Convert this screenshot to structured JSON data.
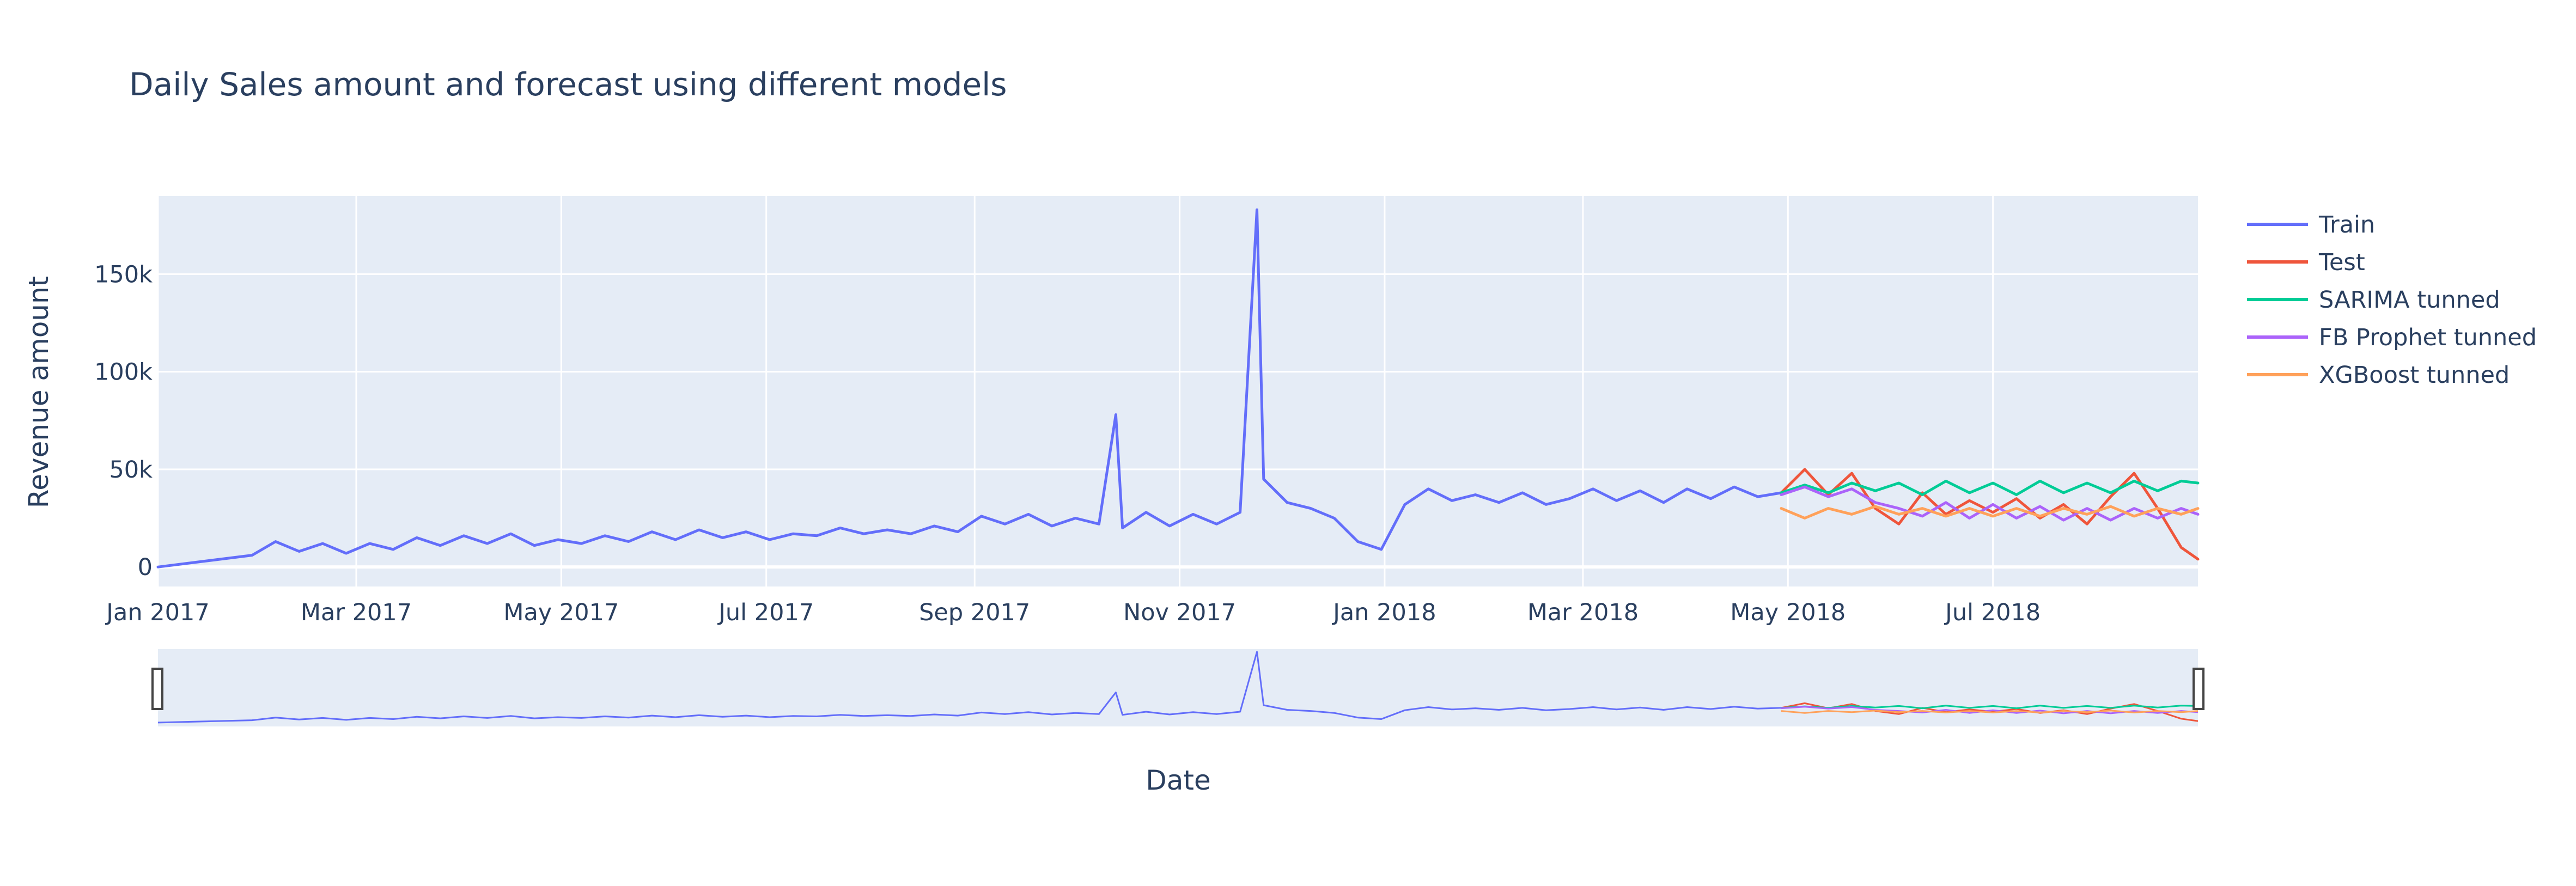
{
  "chart_data": {
    "type": "line",
    "title": "Daily Sales amount and forecast using different models",
    "xlabel": "Date",
    "ylabel": "Revenue amount",
    "xlim": [
      "2017-01-01",
      "2018-08-31"
    ],
    "ylim": [
      -10000,
      190000
    ],
    "x_ticks": [
      "Jan 2017",
      "Mar 2017",
      "May 2017",
      "Jul 2017",
      "Sep 2017",
      "Nov 2017",
      "Jan 2018",
      "Mar 2018",
      "May 2018",
      "Jul 2018"
    ],
    "y_ticks": [
      {
        "value": 0,
        "label": "0"
      },
      {
        "value": 50000,
        "label": "50k"
      },
      {
        "value": 100000,
        "label": "100k"
      },
      {
        "value": 150000,
        "label": "150k"
      }
    ],
    "grid": true,
    "legend_position": "top-right",
    "range_slider": true,
    "series": [
      {
        "name": "Train",
        "color": "#636efa",
        "points": [
          [
            "2017-01-01",
            0
          ],
          [
            "2017-01-15",
            3000
          ],
          [
            "2017-01-29",
            6000
          ],
          [
            "2017-02-05",
            13000
          ],
          [
            "2017-02-12",
            8000
          ],
          [
            "2017-02-19",
            12000
          ],
          [
            "2017-02-26",
            7000
          ],
          [
            "2017-03-05",
            12000
          ],
          [
            "2017-03-12",
            9000
          ],
          [
            "2017-03-19",
            15000
          ],
          [
            "2017-03-26",
            11000
          ],
          [
            "2017-04-02",
            16000
          ],
          [
            "2017-04-09",
            12000
          ],
          [
            "2017-04-16",
            17000
          ],
          [
            "2017-04-23",
            11000
          ],
          [
            "2017-04-30",
            14000
          ],
          [
            "2017-05-07",
            12000
          ],
          [
            "2017-05-14",
            16000
          ],
          [
            "2017-05-21",
            13000
          ],
          [
            "2017-05-28",
            18000
          ],
          [
            "2017-06-04",
            14000
          ],
          [
            "2017-06-11",
            19000
          ],
          [
            "2017-06-18",
            15000
          ],
          [
            "2017-06-25",
            18000
          ],
          [
            "2017-07-02",
            14000
          ],
          [
            "2017-07-09",
            17000
          ],
          [
            "2017-07-16",
            16000
          ],
          [
            "2017-07-23",
            20000
          ],
          [
            "2017-07-30",
            17000
          ],
          [
            "2017-08-06",
            19000
          ],
          [
            "2017-08-13",
            17000
          ],
          [
            "2017-08-20",
            21000
          ],
          [
            "2017-08-27",
            18000
          ],
          [
            "2017-09-03",
            26000
          ],
          [
            "2017-09-10",
            22000
          ],
          [
            "2017-09-17",
            27000
          ],
          [
            "2017-09-24",
            21000
          ],
          [
            "2017-10-01",
            25000
          ],
          [
            "2017-10-08",
            22000
          ],
          [
            "2017-10-13",
            78000
          ],
          [
            "2017-10-15",
            20000
          ],
          [
            "2017-10-22",
            28000
          ],
          [
            "2017-10-29",
            21000
          ],
          [
            "2017-11-05",
            27000
          ],
          [
            "2017-11-12",
            22000
          ],
          [
            "2017-11-19",
            28000
          ],
          [
            "2017-11-24",
            183000
          ],
          [
            "2017-11-26",
            45000
          ],
          [
            "2017-12-03",
            33000
          ],
          [
            "2017-12-10",
            30000
          ],
          [
            "2017-12-17",
            25000
          ],
          [
            "2017-12-24",
            13000
          ],
          [
            "2017-12-31",
            9000
          ],
          [
            "2018-01-07",
            32000
          ],
          [
            "2018-01-14",
            40000
          ],
          [
            "2018-01-21",
            34000
          ],
          [
            "2018-01-28",
            37000
          ],
          [
            "2018-02-04",
            33000
          ],
          [
            "2018-02-11",
            38000
          ],
          [
            "2018-02-18",
            32000
          ],
          [
            "2018-02-25",
            35000
          ],
          [
            "2018-03-04",
            40000
          ],
          [
            "2018-03-11",
            34000
          ],
          [
            "2018-03-18",
            39000
          ],
          [
            "2018-03-25",
            33000
          ],
          [
            "2018-04-01",
            40000
          ],
          [
            "2018-04-08",
            35000
          ],
          [
            "2018-04-15",
            41000
          ],
          [
            "2018-04-22",
            36000
          ],
          [
            "2018-04-29",
            38000
          ]
        ]
      },
      {
        "name": "Test",
        "color": "#ef553b",
        "points": [
          [
            "2018-04-29",
            38000
          ],
          [
            "2018-05-06",
            50000
          ],
          [
            "2018-05-13",
            37000
          ],
          [
            "2018-05-20",
            48000
          ],
          [
            "2018-05-27",
            30000
          ],
          [
            "2018-06-03",
            22000
          ],
          [
            "2018-06-10",
            38000
          ],
          [
            "2018-06-17",
            27000
          ],
          [
            "2018-06-24",
            34000
          ],
          [
            "2018-07-01",
            28000
          ],
          [
            "2018-07-08",
            35000
          ],
          [
            "2018-07-15",
            25000
          ],
          [
            "2018-07-22",
            32000
          ],
          [
            "2018-07-29",
            22000
          ],
          [
            "2018-08-05",
            36000
          ],
          [
            "2018-08-12",
            48000
          ],
          [
            "2018-08-19",
            30000
          ],
          [
            "2018-08-26",
            10000
          ],
          [
            "2018-08-31",
            4000
          ]
        ]
      },
      {
        "name": "SARIMA tunned",
        "color": "#00cc96",
        "points": [
          [
            "2018-04-29",
            38000
          ],
          [
            "2018-05-06",
            42000
          ],
          [
            "2018-05-13",
            38000
          ],
          [
            "2018-05-20",
            43000
          ],
          [
            "2018-05-27",
            39000
          ],
          [
            "2018-06-03",
            43000
          ],
          [
            "2018-06-10",
            37000
          ],
          [
            "2018-06-17",
            44000
          ],
          [
            "2018-06-24",
            38000
          ],
          [
            "2018-07-01",
            43000
          ],
          [
            "2018-07-08",
            37000
          ],
          [
            "2018-07-15",
            44000
          ],
          [
            "2018-07-22",
            38000
          ],
          [
            "2018-07-29",
            43000
          ],
          [
            "2018-08-05",
            38000
          ],
          [
            "2018-08-12",
            44000
          ],
          [
            "2018-08-19",
            39000
          ],
          [
            "2018-08-26",
            44000
          ],
          [
            "2018-08-31",
            43000
          ]
        ]
      },
      {
        "name": "FB Prophet tunned",
        "color": "#ab63fa",
        "points": [
          [
            "2018-04-29",
            37000
          ],
          [
            "2018-05-06",
            41000
          ],
          [
            "2018-05-13",
            36000
          ],
          [
            "2018-05-20",
            40000
          ],
          [
            "2018-05-27",
            33000
          ],
          [
            "2018-06-03",
            30000
          ],
          [
            "2018-06-10",
            26000
          ],
          [
            "2018-06-17",
            33000
          ],
          [
            "2018-06-24",
            25000
          ],
          [
            "2018-07-01",
            32000
          ],
          [
            "2018-07-08",
            25000
          ],
          [
            "2018-07-15",
            31000
          ],
          [
            "2018-07-22",
            24000
          ],
          [
            "2018-07-29",
            30000
          ],
          [
            "2018-08-05",
            24000
          ],
          [
            "2018-08-12",
            30000
          ],
          [
            "2018-08-19",
            25000
          ],
          [
            "2018-08-26",
            30000
          ],
          [
            "2018-08-31",
            27000
          ]
        ]
      },
      {
        "name": "XGBoost tunned",
        "color": "#ffa15a",
        "points": [
          [
            "2018-04-29",
            30000
          ],
          [
            "2018-05-06",
            25000
          ],
          [
            "2018-05-13",
            30000
          ],
          [
            "2018-05-20",
            27000
          ],
          [
            "2018-05-27",
            31000
          ],
          [
            "2018-06-03",
            27000
          ],
          [
            "2018-06-10",
            30000
          ],
          [
            "2018-06-17",
            26000
          ],
          [
            "2018-06-24",
            30000
          ],
          [
            "2018-07-01",
            26000
          ],
          [
            "2018-07-08",
            30000
          ],
          [
            "2018-07-15",
            26000
          ],
          [
            "2018-07-22",
            30000
          ],
          [
            "2018-07-29",
            27000
          ],
          [
            "2018-08-05",
            31000
          ],
          [
            "2018-08-12",
            26000
          ],
          [
            "2018-08-19",
            30000
          ],
          [
            "2018-08-26",
            27000
          ],
          [
            "2018-08-31",
            30000
          ]
        ]
      }
    ]
  }
}
